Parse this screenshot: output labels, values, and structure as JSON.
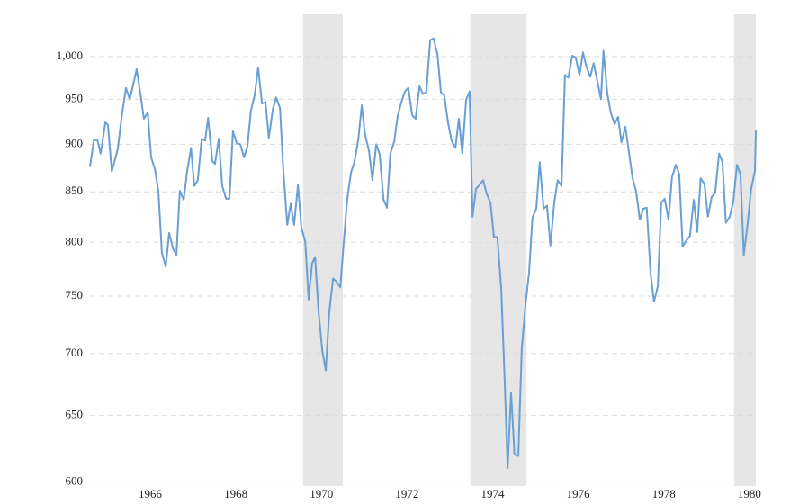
{
  "chart_data": {
    "type": "line",
    "log_scale": true,
    "grid": true,
    "color": "#6a9fd4",
    "shade_color": "#e6e6e6",
    "xlim": [
      1964.59,
      1980.15
    ],
    "xticks": [
      1966,
      1968,
      1970,
      1972,
      1974,
      1976,
      1978,
      1980
    ],
    "ylim": [
      597,
      1052
    ],
    "yticks": [
      600,
      650,
      700,
      750,
      800,
      850,
      900,
      950,
      {
        "value": 1000,
        "label": "1,000"
      }
    ],
    "shaded_regions": [
      [
        1969.57,
        1970.5
      ],
      [
        1973.48,
        1974.79
      ],
      [
        1979.64,
        1980.15
      ]
    ],
    "x": [
      1964.59,
      1964.68,
      1964.76,
      1964.84,
      1964.95,
      1965.01,
      1965.1,
      1965.24,
      1965.33,
      1965.43,
      1965.52,
      1965.62,
      1965.68,
      1965.77,
      1965.85,
      1965.94,
      1966.02,
      1966.11,
      1966.19,
      1966.27,
      1966.36,
      1966.44,
      1966.53,
      1966.61,
      1966.69,
      1966.78,
      1966.86,
      1966.95,
      1967.03,
      1967.11,
      1967.2,
      1967.28,
      1967.35,
      1967.45,
      1967.51,
      1967.6,
      1967.68,
      1967.77,
      1967.85,
      1967.93,
      1968.02,
      1968.1,
      1968.19,
      1968.27,
      1968.35,
      1968.44,
      1968.52,
      1968.61,
      1968.69,
      1968.77,
      1968.86,
      1968.94,
      1969.03,
      1969.11,
      1969.2,
      1969.28,
      1969.36,
      1969.45,
      1969.53,
      1969.62,
      1969.7,
      1969.78,
      1969.85,
      1969.93,
      1970.02,
      1970.1,
      1970.18,
      1970.27,
      1970.35,
      1970.44,
      1970.52,
      1970.6,
      1970.69,
      1970.77,
      1970.86,
      1970.94,
      1971.02,
      1971.11,
      1971.19,
      1971.28,
      1971.36,
      1971.45,
      1971.53,
      1971.61,
      1971.7,
      1971.78,
      1971.87,
      1971.95,
      1972.03,
      1972.12,
      1972.2,
      1972.29,
      1972.37,
      1972.45,
      1972.54,
      1972.62,
      1972.71,
      1972.79,
      1972.87,
      1972.96,
      1973.04,
      1973.13,
      1973.21,
      1973.29,
      1973.38,
      1973.46,
      1973.53,
      1973.61,
      1973.69,
      1973.78,
      1973.86,
      1973.95,
      1974.03,
      1974.11,
      1974.2,
      1974.28,
      1974.35,
      1974.43,
      1974.51,
      1974.6,
      1974.68,
      1974.77,
      1974.85,
      1974.93,
      1975.02,
      1975.1,
      1975.19,
      1975.27,
      1975.35,
      1975.44,
      1975.52,
      1975.61,
      1975.69,
      1975.77,
      1975.86,
      1975.94,
      1976.03,
      1976.11,
      1976.19,
      1976.28,
      1976.36,
      1976.45,
      1976.53,
      1976.59,
      1976.68,
      1976.76,
      1976.85,
      1976.93,
      1977.01,
      1977.1,
      1977.18,
      1977.27,
      1977.35,
      1977.44,
      1977.52,
      1977.6,
      1977.69,
      1977.77,
      1977.86,
      1977.94,
      1978.02,
      1978.11,
      1978.19,
      1978.28,
      1978.36,
      1978.44,
      1978.53,
      1978.61,
      1978.7,
      1978.78,
      1978.86,
      1978.95,
      1979.03,
      1979.12,
      1979.2,
      1979.29,
      1979.37,
      1979.45,
      1979.54,
      1979.62,
      1979.71,
      1979.79,
      1979.87,
      1979.96,
      1980.04,
      1980.13,
      1980.15
    ],
    "values": [
      876,
      904,
      905,
      890,
      924,
      921,
      871,
      895,
      930,
      963,
      950,
      971,
      985,
      956,
      928,
      935,
      886,
      873,
      850,
      790,
      777,
      809,
      794,
      788,
      851,
      842,
      871,
      896,
      856,
      862,
      906,
      904,
      929,
      882,
      879,
      906,
      856,
      843,
      843,
      914,
      901,
      900,
      886,
      898,
      937,
      955,
      987,
      945,
      947,
      907,
      938,
      952,
      940,
      871,
      817,
      838,
      817,
      857,
      814,
      801,
      747,
      780,
      786,
      737,
      702,
      686,
      735,
      766,
      763,
      758,
      800,
      842,
      870,
      881,
      905,
      943,
      910,
      893,
      862,
      900,
      889,
      842,
      834,
      890,
      903,
      931,
      947,
      959,
      963,
      932,
      928,
      965,
      956,
      958,
      1020,
      1022,
      1003,
      958,
      954,
      923,
      904,
      896,
      928,
      890,
      949,
      959,
      825,
      853,
      857,
      862,
      848,
      839,
      805,
      805,
      757,
      679,
      610,
      668,
      620,
      619,
      704,
      743,
      771,
      824,
      833,
      881,
      833,
      836,
      797,
      839,
      862,
      856,
      978,
      975,
      1001,
      999,
      978,
      1005,
      988,
      976,
      992,
      970,
      950,
      1007,
      956,
      935,
      922,
      930,
      902,
      919,
      893,
      864,
      851,
      822,
      833,
      834,
      771,
      745,
      759,
      839,
      843,
      822,
      865,
      878,
      868,
      796,
      802,
      806,
      842,
      810,
      864,
      858,
      825,
      845,
      849,
      890,
      881,
      819,
      825,
      839,
      878,
      868,
      788,
      819,
      853,
      872,
      915
    ]
  }
}
